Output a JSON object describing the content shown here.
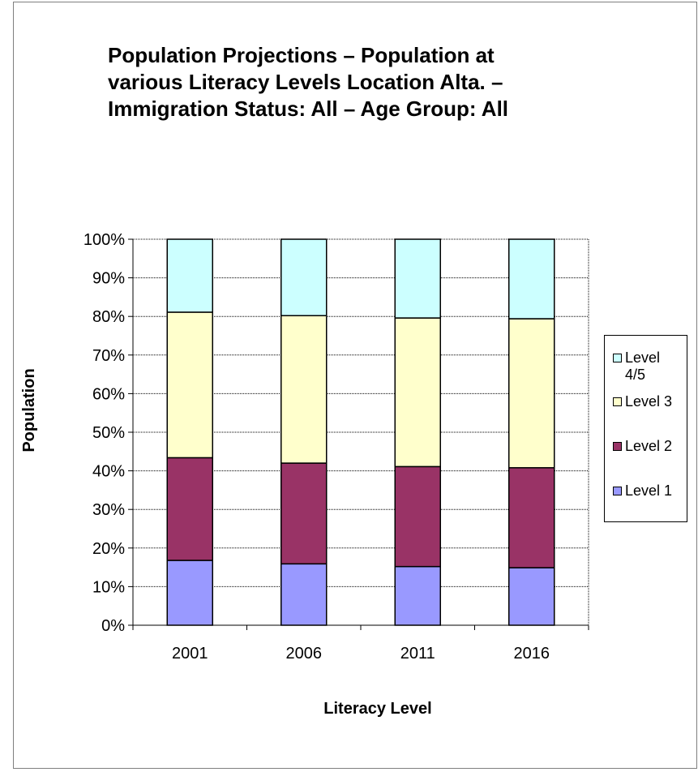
{
  "chart_data": {
    "type": "bar",
    "stacked": "percent",
    "title": "Population Projections – Population at\nvarious Literacy Levels Location Alta. –\nImmigration Status: All – Age Group: All",
    "xlabel": "Literacy Level",
    "ylabel": "Population",
    "categories": [
      "2001",
      "2006",
      "2011",
      "2016"
    ],
    "ylim": [
      0,
      100
    ],
    "yticks": [
      "0%",
      "10%",
      "20%",
      "30%",
      "40%",
      "50%",
      "60%",
      "70%",
      "80%",
      "90%",
      "100%"
    ],
    "grid": true,
    "legend_position": "right",
    "series": [
      {
        "name": "Level 1",
        "color": "#9999ff",
        "values": [
          16.8,
          15.9,
          15.2,
          14.9
        ]
      },
      {
        "name": "Level 2",
        "color": "#993366",
        "values": [
          26.6,
          26.1,
          25.9,
          25.9
        ]
      },
      {
        "name": "Level 3",
        "color": "#ffffcc",
        "values": [
          37.7,
          38.2,
          38.5,
          38.6
        ]
      },
      {
        "name": "Level 4/5",
        "color": "#ccffff",
        "values": [
          18.9,
          19.8,
          20.4,
          20.6
        ]
      }
    ]
  }
}
